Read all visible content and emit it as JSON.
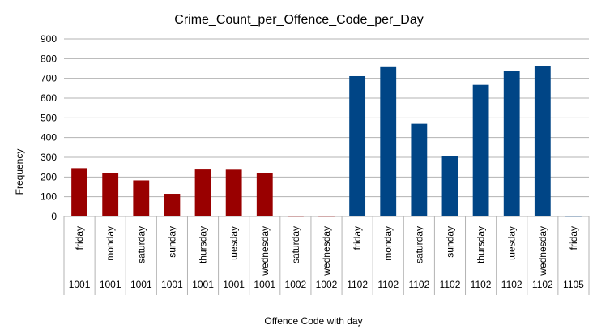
{
  "chart_data": {
    "type": "bar",
    "title": "Crime_Count_per_Offence_Code_per_Day",
    "xlabel": "Offence Code with day",
    "ylabel": "Frequency",
    "ylim": [
      0,
      900
    ],
    "yticks": [
      "0",
      "100",
      "200",
      "300",
      "400",
      "500",
      "600",
      "700",
      "800",
      "900"
    ],
    "grid": true,
    "legend": "none",
    "categories": [
      {
        "day": "friday",
        "code": "1001",
        "value": 245,
        "color": "#990000"
      },
      {
        "day": "monday",
        "code": "1001",
        "value": 218,
        "color": "#990000"
      },
      {
        "day": "saturday",
        "code": "1001",
        "value": 183,
        "color": "#990000"
      },
      {
        "day": "sunday",
        "code": "1001",
        "value": 115,
        "color": "#990000"
      },
      {
        "day": "thursday",
        "code": "1001",
        "value": 238,
        "color": "#990000"
      },
      {
        "day": "tuesday",
        "code": "1001",
        "value": 237,
        "color": "#990000"
      },
      {
        "day": "wednesday",
        "code": "1001",
        "value": 218,
        "color": "#990000"
      },
      {
        "day": "saturday",
        "code": "1002",
        "value": 1,
        "color": "#990000"
      },
      {
        "day": "wednesday",
        "code": "1002",
        "value": 1,
        "color": "#990000"
      },
      {
        "day": "friday",
        "code": "1102",
        "value": 711,
        "color": "#004586"
      },
      {
        "day": "monday",
        "code": "1102",
        "value": 757,
        "color": "#004586"
      },
      {
        "day": "saturday",
        "code": "1102",
        "value": 470,
        "color": "#004586"
      },
      {
        "day": "sunday",
        "code": "1102",
        "value": 305,
        "color": "#004586"
      },
      {
        "day": "thursday",
        "code": "1102",
        "value": 667,
        "color": "#004586"
      },
      {
        "day": "tuesday",
        "code": "1102",
        "value": 739,
        "color": "#004586"
      },
      {
        "day": "wednesday",
        "code": "1102",
        "value": 764,
        "color": "#004586"
      },
      {
        "day": "friday",
        "code": "1105",
        "value": 1,
        "color": "#004586"
      }
    ]
  }
}
